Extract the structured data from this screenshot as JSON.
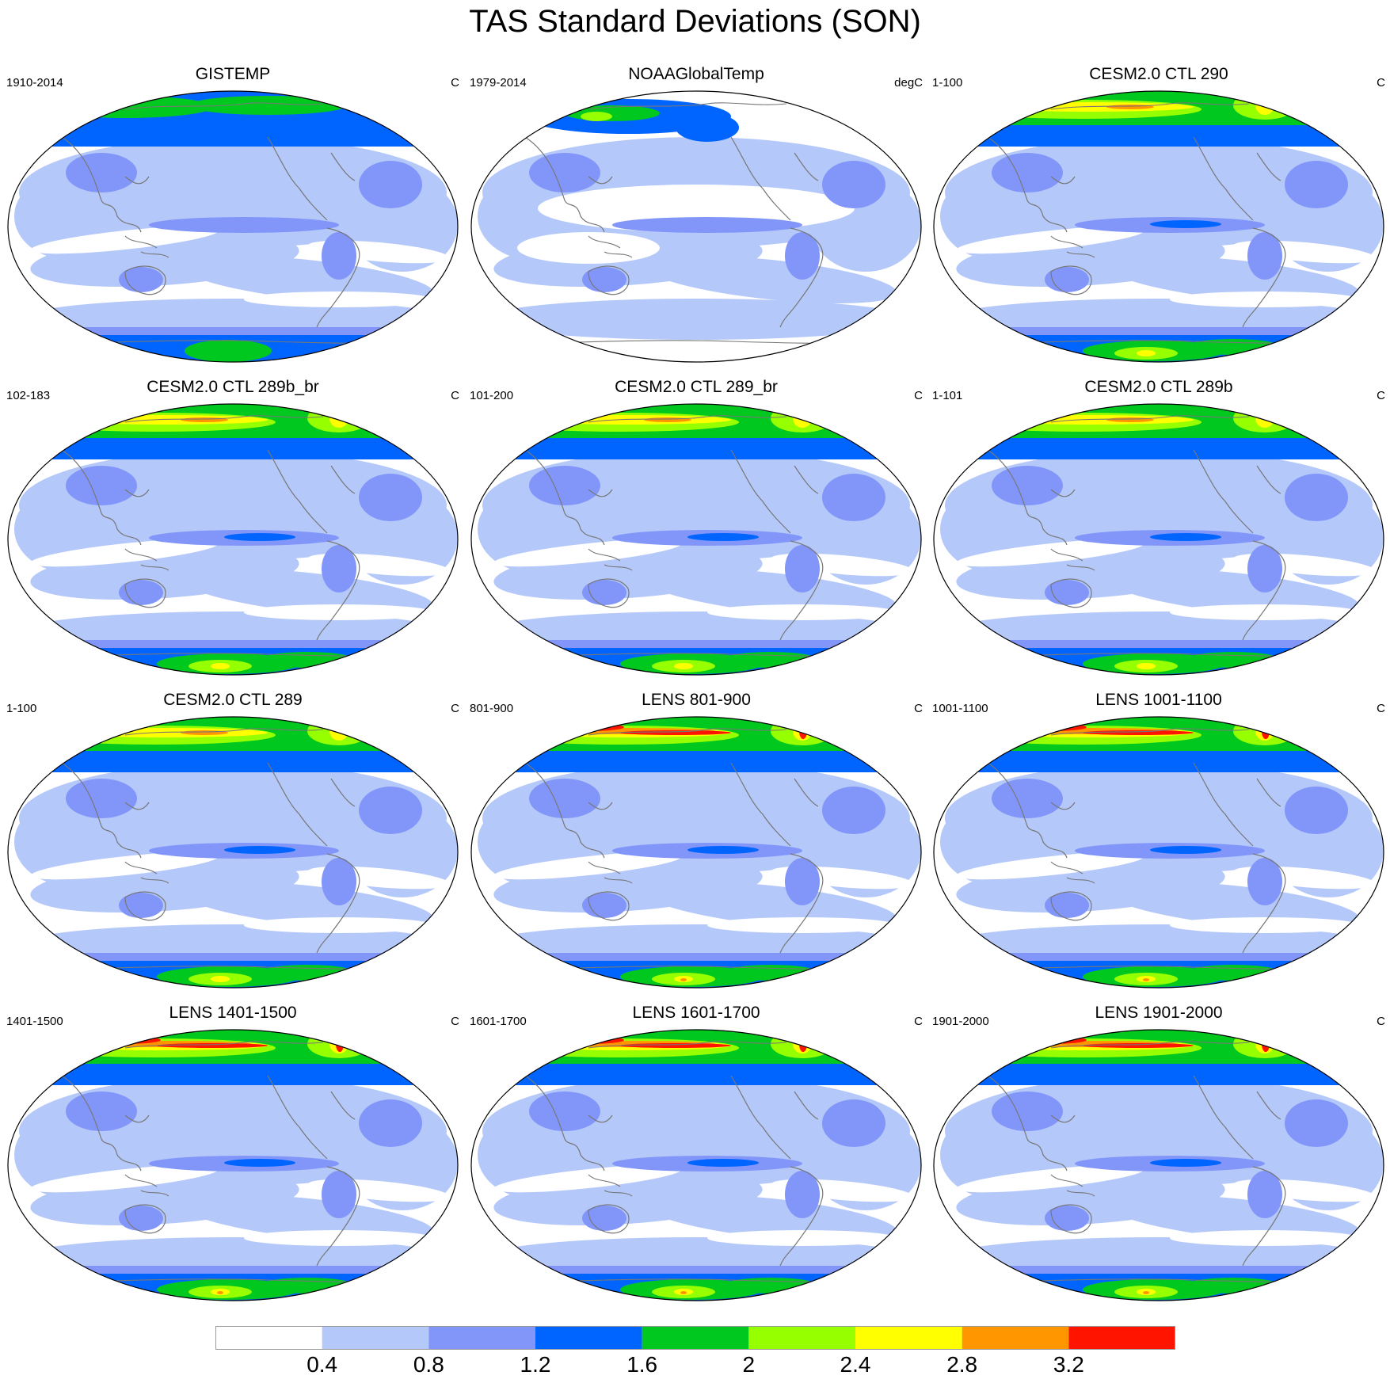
{
  "title": "TAS Standard Deviations (SON)",
  "colorbar": {
    "levels": [
      "0.4",
      "0.8",
      "1.2",
      "1.6",
      "2",
      "2.4",
      "2.8",
      "3.2"
    ],
    "colors": [
      "#ffffff",
      "#b4c8fa",
      "#8296fa",
      "#0064ff",
      "#00c81e",
      "#96ff00",
      "#ffff00",
      "#ff9600",
      "#ff1400"
    ]
  },
  "panels": [
    {
      "title": "GISTEMP",
      "left": "1910-2014",
      "right": "C",
      "variant": "gistemp"
    },
    {
      "title": "NOAAGlobalTemp",
      "left": "1979-2014",
      "right": "degC",
      "variant": "noaa"
    },
    {
      "title": "CESM2.0 CTL 290",
      "left": "1-100",
      "right": "C",
      "variant": "cesm"
    },
    {
      "title": "CESM2.0 CTL 289b_br",
      "left": "102-183",
      "right": "C",
      "variant": "cesm"
    },
    {
      "title": "CESM2.0 CTL 289_br",
      "left": "101-200",
      "right": "C",
      "variant": "cesm"
    },
    {
      "title": "CESM2.0 CTL 289b",
      "left": "1-101",
      "right": "C",
      "variant": "cesm"
    },
    {
      "title": "CESM2.0 CTL 289",
      "left": "1-100",
      "right": "C",
      "variant": "cesm"
    },
    {
      "title": "LENS 801-900",
      "left": "801-900",
      "right": "C",
      "variant": "lens"
    },
    {
      "title": "LENS 1001-1100",
      "left": "1001-1100",
      "right": "C",
      "variant": "lens"
    },
    {
      "title": "LENS 1401-1500",
      "left": "1401-1500",
      "right": "C",
      "variant": "lens"
    },
    {
      "title": "LENS 1601-1700",
      "left": "1601-1700",
      "right": "C",
      "variant": "lens"
    },
    {
      "title": "LENS 1901-2000",
      "left": "1901-2000",
      "right": "C",
      "variant": "lens"
    }
  ]
}
